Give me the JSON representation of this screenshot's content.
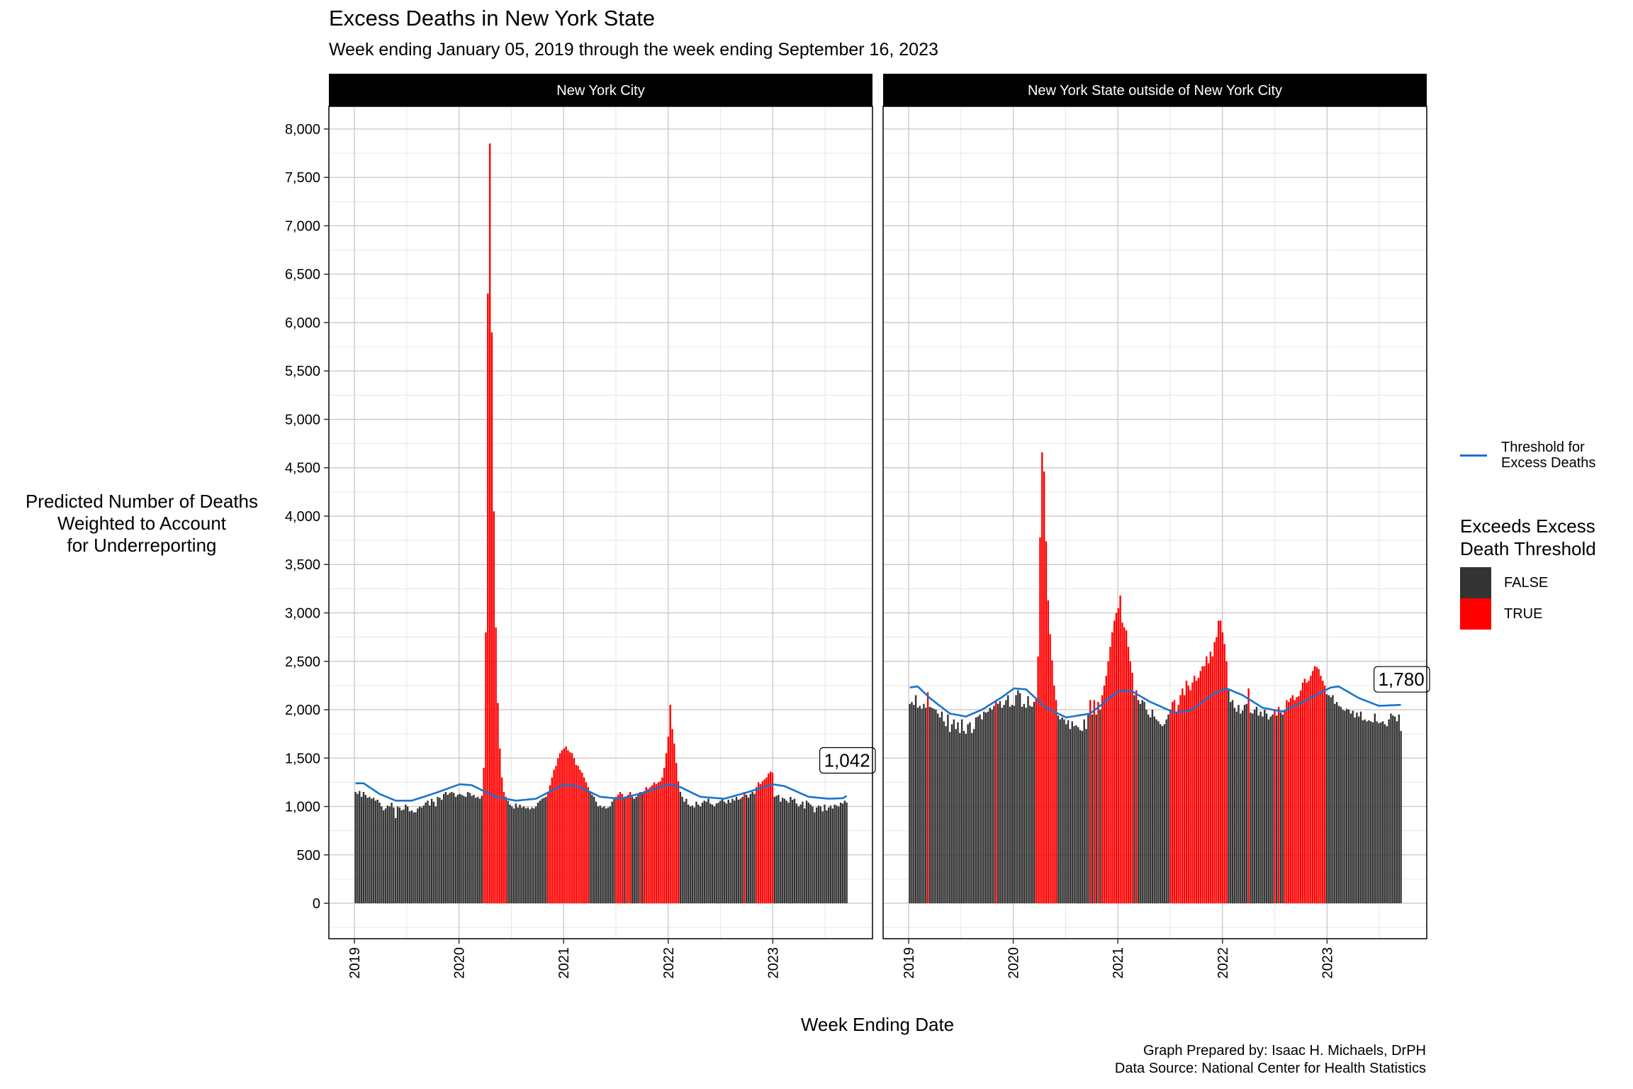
{
  "title": "Excess Deaths in New York State",
  "subtitle": "Week ending January 05, 2019 through the week ending September 16, 2023",
  "caption_line1": "Graph Prepared by: Isaac H. Michaels, DrPH",
  "caption_line2": "Data Source: National Center for Health Statistics",
  "legend": {
    "line_label_1": "Threshold for",
    "line_label_2": "Excess Deaths",
    "fill_title_1": "Exceeds Excess",
    "fill_title_2": "Death Threshold",
    "false_label": "FALSE",
    "true_label": "TRUE"
  },
  "colors": {
    "false": "#333333",
    "true": "#ff0000",
    "threshold": "#1874cd"
  },
  "chart_data": {
    "type": "bar",
    "xlabel": "Week Ending Date",
    "ylabel_lines": [
      "Predicted Number of Deaths",
      "Weighted to Account",
      "for Underreporting"
    ],
    "ylim": [
      -366,
      8234
    ],
    "xlim_years": [
      2018.756,
      2023.953
    ],
    "start_week": "2019-01-05",
    "y_ticks": [
      0,
      500,
      1000,
      1500,
      2000,
      2500,
      3000,
      3500,
      4000,
      4500,
      5000,
      5500,
      6000,
      6500,
      7000,
      7500,
      8000
    ],
    "y_tick_labels": [
      "0",
      "500",
      "1,000",
      "1,500",
      "2,000",
      "2,500",
      "3,000",
      "3,500",
      "4,000",
      "4,500",
      "5,000",
      "5,500",
      "6,000",
      "6,500",
      "7,000",
      "7,500",
      "8,000"
    ],
    "x_ticks": [
      2019,
      2020,
      2021,
      2022,
      2023
    ],
    "x_tick_labels": [
      "2019",
      "2020",
      "2021",
      "2022",
      "2023"
    ],
    "panels": [
      {
        "name": "New York City",
        "end_label": "1,042",
        "values": [
          1150,
          1130,
          1160,
          1100,
          1150,
          1120,
          1090,
          1100,
          1080,
          1090,
          1060,
          1070,
          1040,
          1000,
          960,
          980,
          1010,
          1000,
          1040,
          990,
          880,
          1000,
          990,
          960,
          970,
          1020,
          1000,
          950,
          960,
          940,
          940,
          980,
          1000,
          990,
          1010,
          1040,
          1060,
          1010,
          1080,
          1050,
          1000,
          1100,
          1090,
          1070,
          1130,
          1150,
          1120,
          1140,
          1150,
          1140,
          1100,
          1120,
          1130,
          1120,
          1110,
          1100,
          1150,
          1140,
          1110,
          1120,
          1090,
          1100,
          1080,
          1110,
          1400,
          2800,
          6300,
          7850,
          5900,
          4050,
          2850,
          2070,
          1600,
          1300,
          1150,
          1100,
          1060,
          1020,
          1000,
          980,
          1030,
          990,
          1020,
          990,
          1000,
          980,
          990,
          970,
          990,
          980,
          1000,
          1040,
          1060,
          1080,
          1090,
          1100,
          1150,
          1220,
          1300,
          1380,
          1420,
          1500,
          1550,
          1580,
          1600,
          1620,
          1580,
          1560,
          1550,
          1500,
          1430,
          1420,
          1380,
          1350,
          1300,
          1250,
          1200,
          1150,
          1120,
          1100,
          1050,
          1000,
          1010,
          990,
          1000,
          980,
          990,
          1000,
          1050,
          1080,
          1100,
          1120,
          1150,
          1130,
          1080,
          1100,
          1120,
          1150,
          1100,
          1080,
          1100,
          1120,
          1150,
          1130,
          1160,
          1200,
          1180,
          1200,
          1220,
          1250,
          1230,
          1250,
          1260,
          1300,
          1400,
          1550,
          1720,
          2050,
          1800,
          1650,
          1450,
          1260,
          1150,
          1100,
          1050,
          1080,
          1020,
          1000,
          1010,
          990,
          1050,
          1020,
          1000,
          1040,
          1060,
          1050,
          1080,
          1030,
          1020,
          1000,
          1030,
          1040,
          1060,
          1080,
          1050,
          1030,
          1070,
          1040,
          1080,
          1060,
          1100,
          1070,
          1080,
          1100,
          1150,
          1120,
          1090,
          1130,
          1150,
          1130,
          1200,
          1250,
          1230,
          1260,
          1280,
          1300,
          1340,
          1360,
          1350,
          1100,
          1110,
          1120,
          1050,
          1090,
          1080,
          1060,
          1040,
          1100,
          1070,
          1080,
          1030,
          1000,
          1020,
          1050,
          980,
          1060,
          1040,
          1020,
          1000,
          940,
          990,
          1010,
          1000,
          950,
          1020,
          960,
          990,
          1010,
          980,
          1020,
          1010,
          1000,
          1040,
          1030,
          1060,
          1042
        ],
        "threshold_points": [
          [
            0,
            1240
          ],
          [
            4,
            1240
          ],
          [
            12,
            1130
          ],
          [
            20,
            1060
          ],
          [
            28,
            1060
          ],
          [
            40,
            1140
          ],
          [
            52,
            1230
          ],
          [
            58,
            1220
          ],
          [
            70,
            1100
          ],
          [
            80,
            1060
          ],
          [
            90,
            1080
          ],
          [
            104,
            1230
          ],
          [
            112,
            1200
          ],
          [
            122,
            1100
          ],
          [
            132,
            1080
          ],
          [
            145,
            1150
          ],
          [
            156,
            1230
          ],
          [
            162,
            1200
          ],
          [
            172,
            1100
          ],
          [
            184,
            1080
          ],
          [
            196,
            1150
          ],
          [
            208,
            1230
          ],
          [
            214,
            1210
          ],
          [
            226,
            1100
          ],
          [
            236,
            1080
          ],
          [
            243,
            1085
          ],
          [
            245,
            1110
          ]
        ]
      },
      {
        "name": "New York State outside of New York City",
        "end_label": "1,780",
        "values": [
          2060,
          2080,
          2050,
          2150,
          2020,
          2040,
          2010,
          2060,
          2020,
          2180,
          2030,
          2020,
          2010,
          2000,
          1960,
          1920,
          1980,
          1880,
          1830,
          1950,
          1770,
          1850,
          1900,
          1800,
          1870,
          1760,
          1900,
          1780,
          1750,
          1850,
          1870,
          1760,
          1800,
          1920,
          1930,
          1950,
          1900,
          1980,
          1970,
          1980,
          2020,
          2000,
          2040,
          2100,
          2060,
          2090,
          2020,
          2050,
          2100,
          2150,
          2030,
          2050,
          2040,
          2150,
          2200,
          2170,
          2030,
          2060,
          2020,
          2140,
          2040,
          2030,
          2080,
          2120,
          2550,
          3780,
          4660,
          4460,
          3740,
          3130,
          2780,
          2510,
          2250,
          2100,
          1940,
          1900,
          1920,
          1900,
          1850,
          1890,
          1800,
          1880,
          1830,
          1840,
          1820,
          1790,
          1780,
          1900,
          1800,
          1950,
          2100,
          1950,
          2100,
          1950,
          2080,
          2000,
          2150,
          2250,
          2350,
          2500,
          2650,
          2800,
          2920,
          3000,
          3050,
          3180,
          2900,
          2850,
          2820,
          2650,
          2500,
          2380,
          2150,
          2200,
          2100,
          2060,
          2100,
          2080,
          2000,
          1950,
          1920,
          2000,
          1930,
          1900,
          1880,
          1850,
          1830,
          1850,
          1900,
          1950,
          2000,
          2080,
          2100,
          1980,
          2050,
          2150,
          2220,
          2150,
          2300,
          2250,
          2200,
          2280,
          2350,
          2300,
          2330,
          2400,
          2450,
          2450,
          2550,
          2480,
          2600,
          2550,
          2700,
          2750,
          2920,
          2920,
          2800,
          2680,
          2500,
          2200,
          2080,
          2100,
          2020,
          1980,
          2050,
          1960,
          1990,
          2050,
          2060,
          2220,
          1970,
          1960,
          2000,
          2030,
          1940,
          1980,
          1930,
          2000,
          1960,
          1900,
          1930,
          1950,
          2000,
          1940,
          2030,
          1970,
          1950,
          2000,
          2100,
          2080,
          2120,
          2150,
          2100,
          2130,
          2140,
          2200,
          2280,
          2320,
          2280,
          2300,
          2350,
          2400,
          2450,
          2440,
          2420,
          2350,
          2300,
          2250,
          2160,
          2150,
          2130,
          2150,
          2060,
          2080,
          2040,
          2030,
          2000,
          1990,
          2010,
          2000,
          1960,
          1990,
          1920,
          1970,
          1930,
          1980,
          1890,
          1900,
          1880,
          1890,
          1880,
          1870,
          1960,
          1880,
          1860,
          1870,
          1880,
          1850,
          1830,
          1900,
          1960,
          1940,
          1930,
          1880,
          1950,
          1780
        ],
        "threshold_points": [
          [
            0,
            2230
          ],
          [
            4,
            2240
          ],
          [
            10,
            2120
          ],
          [
            20,
            1960
          ],
          [
            28,
            1930
          ],
          [
            36,
            2000
          ],
          [
            46,
            2130
          ],
          [
            52,
            2220
          ],
          [
            58,
            2210
          ],
          [
            68,
            2020
          ],
          [
            78,
            1920
          ],
          [
            90,
            1960
          ],
          [
            104,
            2190
          ],
          [
            110,
            2200
          ],
          [
            120,
            2080
          ],
          [
            132,
            1970
          ],
          [
            140,
            1990
          ],
          [
            152,
            2170
          ],
          [
            158,
            2220
          ],
          [
            166,
            2150
          ],
          [
            176,
            2020
          ],
          [
            186,
            1980
          ],
          [
            196,
            2080
          ],
          [
            210,
            2230
          ],
          [
            214,
            2240
          ],
          [
            224,
            2120
          ],
          [
            234,
            2040
          ],
          [
            245,
            2050
          ]
        ]
      }
    ]
  }
}
